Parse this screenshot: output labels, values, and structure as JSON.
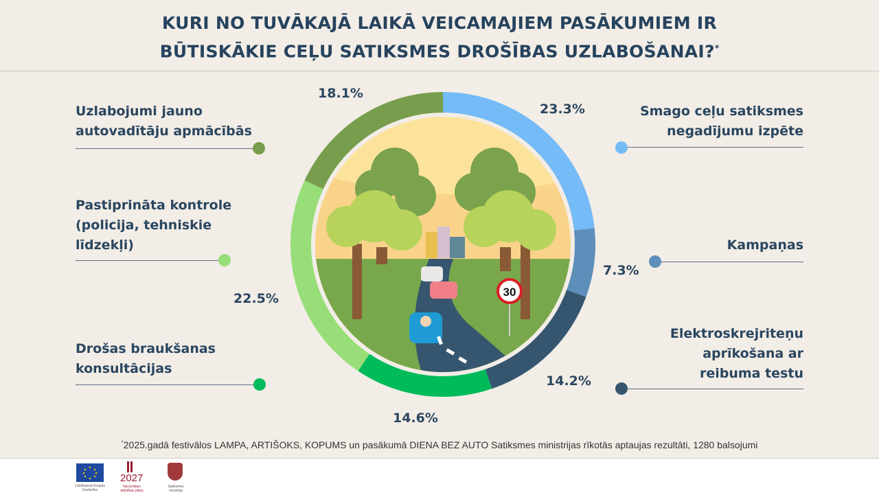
{
  "title_line1": "KURI NO TUVĀKAJĀ LAIKĀ VEICAMAJIEM PASĀKUMIEM IR",
  "title_line2": "BŪTISKĀKIE CEĻU SATIKSMES DROŠĪBAS UZLABOŠANAI?",
  "title_mark": "*",
  "chart_data": {
    "type": "pie",
    "style": "donut",
    "categories": [
      "Smago ceļu satiksmes negadījumu izpēte",
      "Kampaņas",
      "Elektroskrejriteņu aprīkošana ar reibuma testu",
      "Drošas braukšanas konsultācijas",
      "Pastiprināta kontrole (policija, tehniskie līdzekļi)",
      "Uzlabojumi jauno autovadītāju apmācībās"
    ],
    "values": [
      23.3,
      7.3,
      14.2,
      14.6,
      22.5,
      18.1
    ],
    "labels": [
      "23.3%",
      "7.3%",
      "14.2%",
      "14.6%",
      "22.5%",
      "18.1%"
    ],
    "colors": [
      "#74bbf7",
      "#5e8fbb",
      "#36566f",
      "#00bb5a",
      "#97dd78",
      "#789e4d"
    ],
    "start": "top, clockwise"
  },
  "legend": {
    "l1": "Uzlabojumi jauno",
    "l2": "autovadītāju apmācībās",
    "l3": "Pastiprināta kontrole",
    "l4": "(policija, tehniskie",
    "l5": "līdzekļi)",
    "l6": "Drošas braukšanas",
    "l7": "konsultācijas",
    "r1": "Smago ceļu satiksmes",
    "r2": "negadījumu izpēte",
    "r3": "Kampaņas",
    "r4": "Elektroskrejriteņu",
    "r5": "aprīkošana ar",
    "r6": "reibuma testu"
  },
  "sign_text": "30",
  "footnote_mark": "*",
  "footnote": "2025.gadā festivālos LAMPA, ARTIŠOKS, KOPUMS un pasākumā DIENA BEZ AUTO Satiksmes ministrijas rīkotās aptaujas rezultāti, 1280 balsojumi",
  "logos": {
    "eu": "Līdzfinansē Eiropas Savienība",
    "plan_year": "2027",
    "plan": "Nacionālais attīstības plāns",
    "ministry": "Satiksmes ministrija"
  }
}
